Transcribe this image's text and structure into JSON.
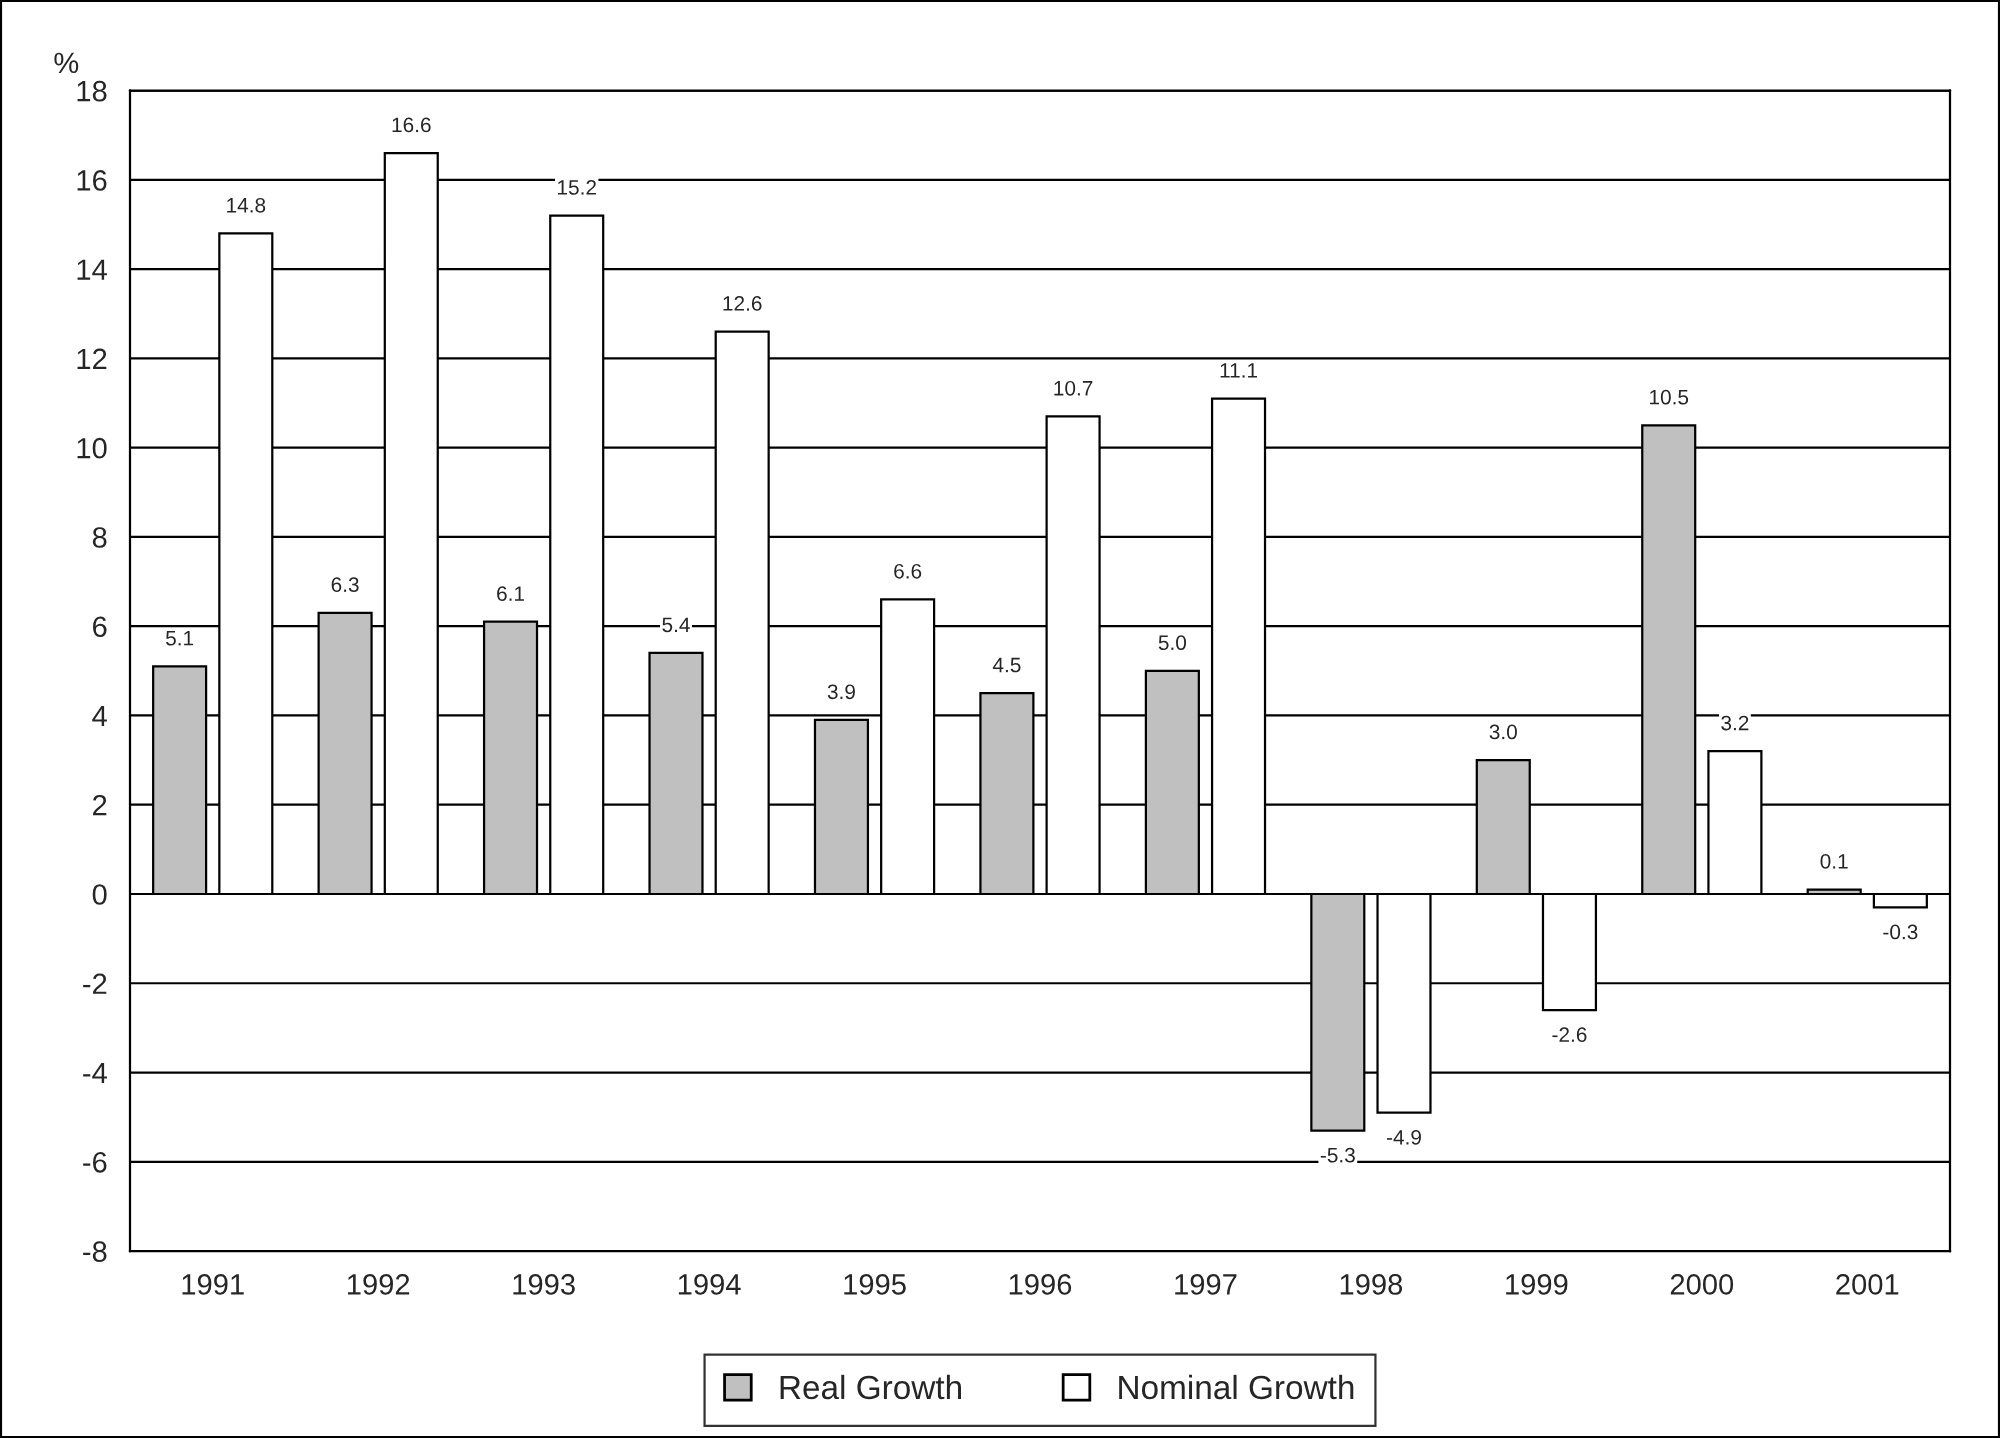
{
  "chart_data": {
    "type": "bar",
    "ylabel": "%",
    "categories": [
      "1991",
      "1992",
      "1993",
      "1994",
      "1995",
      "1996",
      "1997",
      "1998",
      "1999",
      "2000",
      "2001"
    ],
    "series": [
      {
        "name": "Real Growth",
        "color": "#c0c0c0",
        "values": [
          5.1,
          6.3,
          6.1,
          5.4,
          3.9,
          4.5,
          5.0,
          -5.3,
          3.0,
          10.5,
          0.1
        ],
        "value_labels": [
          "5.1",
          "6.3",
          "6.1",
          "5.4",
          "3.9",
          "4.5",
          "5.0",
          "-5.3",
          "3.0",
          "10.5",
          "0.1"
        ]
      },
      {
        "name": "Nominal Growth",
        "color": "#ffffff",
        "values": [
          14.8,
          16.6,
          15.2,
          12.6,
          6.6,
          10.7,
          11.1,
          -4.9,
          -2.6,
          3.2,
          -0.3
        ],
        "value_labels": [
          "14.8",
          "16.6",
          "15.2",
          "12.6",
          "6.6",
          "10.7",
          "11.1",
          "-4.9",
          "-2.6",
          "3.2",
          "-0.3"
        ]
      }
    ],
    "ylim": [
      -8,
      18
    ],
    "yticks": [
      -8,
      -6,
      -4,
      -2,
      0,
      2,
      4,
      6,
      8,
      10,
      12,
      14,
      16,
      18
    ],
    "grid": "y",
    "legend": "bottom"
  }
}
